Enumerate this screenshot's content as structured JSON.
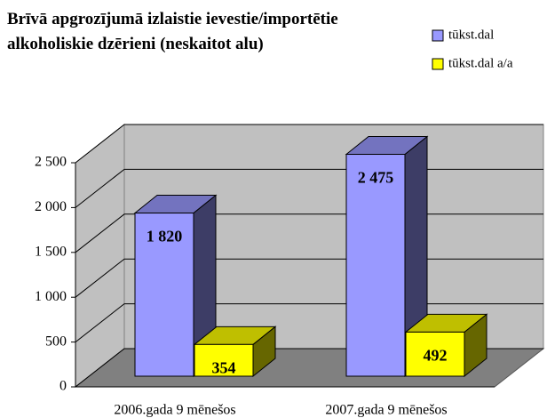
{
  "chart_data": {
    "type": "bar3d",
    "title": "Brīvā apgrozījumā izlaistie ievestie/importētie alkoholiskie dzērieni (neskaitot alu)",
    "categories": [
      "2006.gada 9 mēnešos",
      "2007.gada 9 mēnešos"
    ],
    "series": [
      {
        "name": "tūkst.dal",
        "color": "#9999ff",
        "values": [
          1820,
          2475
        ],
        "value_labels": [
          "1 820",
          "2 475"
        ]
      },
      {
        "name": "tūkst.dal a/a",
        "color": "#ffff00",
        "values": [
          354,
          492
        ]
      }
    ],
    "ylim": [
      0,
      2500
    ],
    "yticks": [
      0,
      500,
      {
        "value": 1000,
        "label": "1 000"
      },
      {
        "value": 1500,
        "label": "1 500"
      },
      {
        "value": 2000,
        "label": "2 000"
      },
      {
        "value": 2500,
        "label": "2 500"
      }
    ],
    "grid": true,
    "legend": "top-right"
  }
}
